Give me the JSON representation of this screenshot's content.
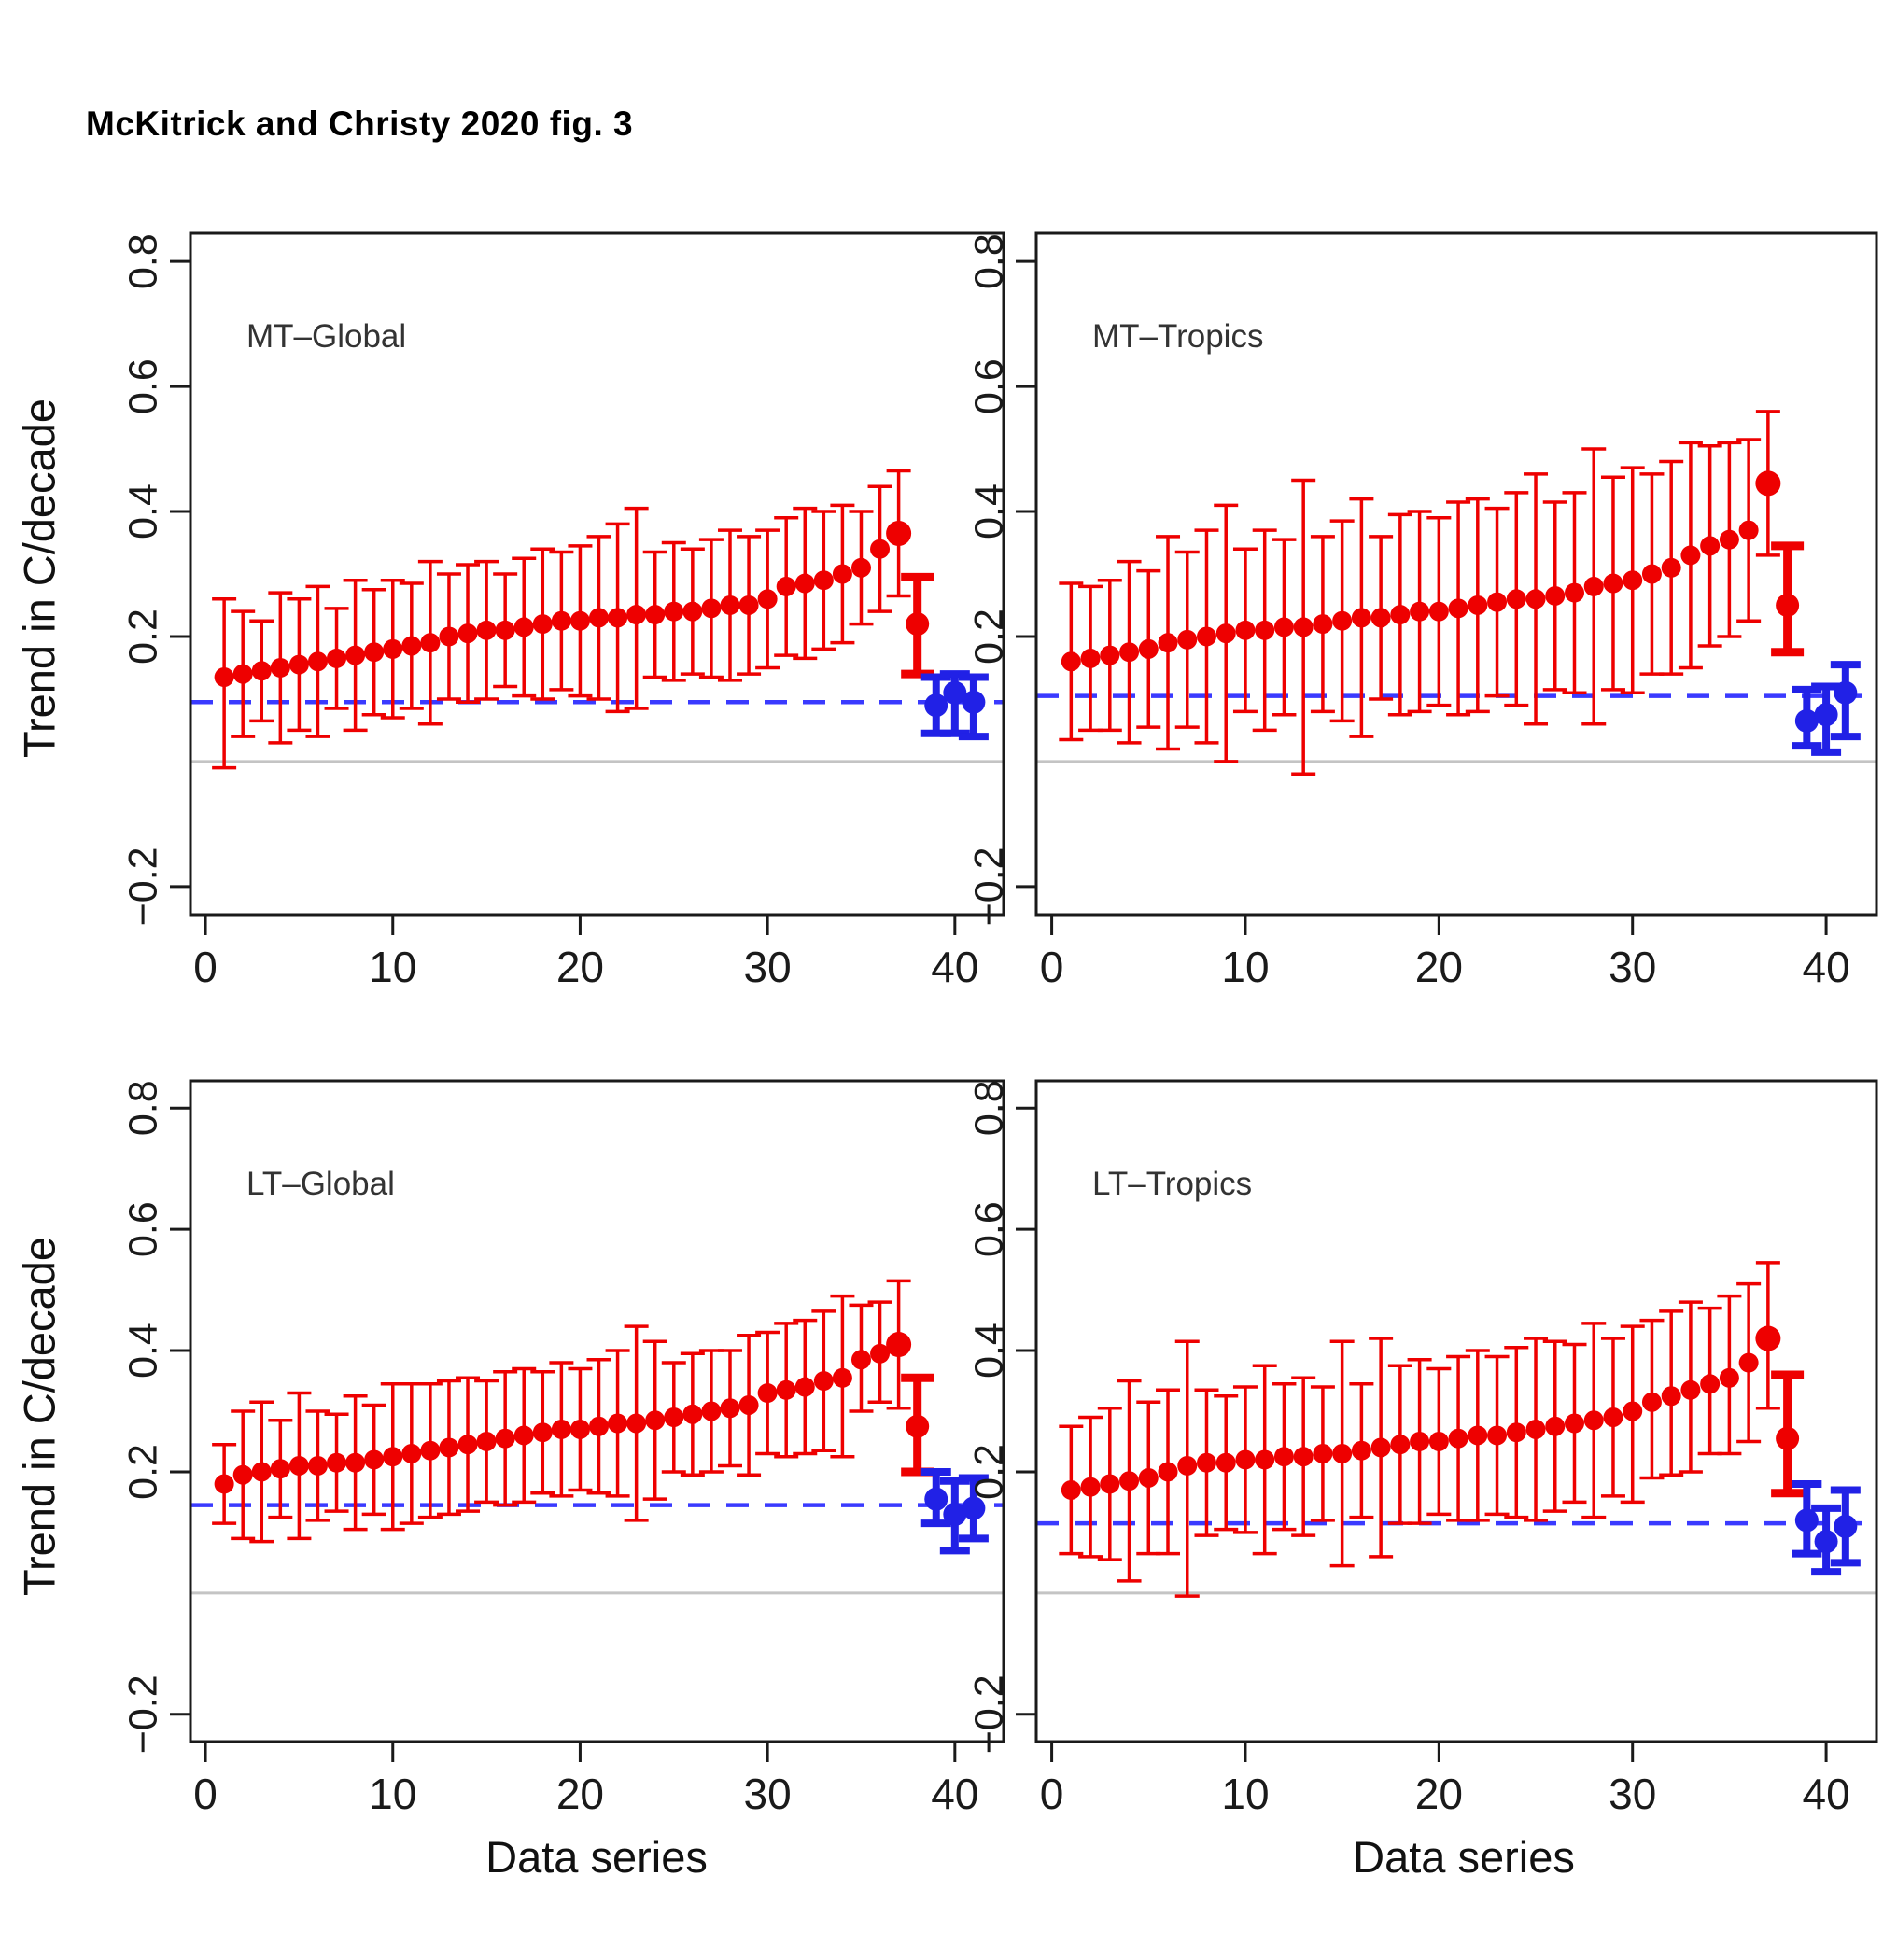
{
  "title": "McKitrick and Christy 2020 fig. 3",
  "axes": {
    "x_title": "Data series",
    "y_title": "Trend in C/decade",
    "x_ticks": [
      0,
      10,
      20,
      30,
      40
    ],
    "y_ticks": [
      0.8,
      0.6,
      0.4,
      0.2,
      -0.2
    ],
    "y_tick_labels": [
      "0.8",
      "0.6",
      "0.4",
      "0.2",
      "−0.2"
    ]
  },
  "colors": {
    "model_red": "#EE0000",
    "obs_blue": "#2121E6",
    "obs_mean_dashed": "#3A3AFF",
    "zero_line_gray": "#C4C4C4",
    "axis": "#1A1A1A",
    "panel_label": "#333333"
  },
  "chart_data": [
    {
      "type": "scatter",
      "id": "mt-global",
      "label": "MT–Global",
      "row": 0,
      "col": 0,
      "ylabel": "Trend in C/decade",
      "xlabel": "Data series",
      "ylim": [
        -0.245,
        0.845
      ],
      "zero_line": 0.0,
      "obs_mean_line": 0.095,
      "models": {
        "x_start": 1,
        "values": [
          0.135,
          0.14,
          0.145,
          0.15,
          0.155,
          0.16,
          0.165,
          0.17,
          0.175,
          0.18,
          0.185,
          0.19,
          0.2,
          0.205,
          0.21,
          0.21,
          0.215,
          0.22,
          0.225,
          0.225,
          0.23,
          0.23,
          0.235,
          0.235,
          0.24,
          0.24,
          0.245,
          0.25,
          0.25,
          0.26,
          0.28,
          0.285,
          0.29,
          0.3,
          0.31,
          0.34,
          0.365
        ],
        "lo": [
          -0.01,
          0.04,
          0.065,
          0.03,
          0.05,
          0.04,
          0.085,
          0.05,
          0.075,
          0.07,
          0.085,
          0.06,
          0.1,
          0.095,
          0.1,
          0.12,
          0.105,
          0.1,
          0.115,
          0.105,
          0.1,
          0.08,
          0.085,
          0.135,
          0.13,
          0.14,
          0.135,
          0.13,
          0.14,
          0.15,
          0.17,
          0.165,
          0.18,
          0.19,
          0.22,
          0.24,
          0.265
        ],
        "hi": [
          0.26,
          0.24,
          0.225,
          0.27,
          0.26,
          0.28,
          0.245,
          0.29,
          0.275,
          0.29,
          0.285,
          0.32,
          0.3,
          0.315,
          0.32,
          0.3,
          0.325,
          0.34,
          0.335,
          0.345,
          0.36,
          0.38,
          0.405,
          0.335,
          0.35,
          0.34,
          0.355,
          0.37,
          0.36,
          0.37,
          0.39,
          0.405,
          0.4,
          0.41,
          0.4,
          0.44,
          0.465
        ]
      },
      "model_mean": {
        "x": 38,
        "value": 0.22,
        "lo": 0.14,
        "hi": 0.295
      },
      "observations": [
        {
          "x": 39,
          "value": 0.09,
          "lo": 0.045,
          "hi": 0.135
        },
        {
          "x": 40,
          "value": 0.11,
          "lo": 0.045,
          "hi": 0.14
        },
        {
          "x": 41,
          "value": 0.095,
          "lo": 0.04,
          "hi": 0.135
        }
      ]
    },
    {
      "type": "scatter",
      "id": "mt-tropics",
      "label": "MT–Tropics",
      "row": 0,
      "col": 1,
      "ylabel": "Trend in C/decade",
      "xlabel": "Data series",
      "ylim": [
        -0.245,
        0.845
      ],
      "zero_line": 0.0,
      "obs_mean_line": 0.105,
      "models": {
        "x_start": 1,
        "values": [
          0.16,
          0.165,
          0.17,
          0.175,
          0.18,
          0.19,
          0.195,
          0.2,
          0.205,
          0.21,
          0.21,
          0.215,
          0.215,
          0.22,
          0.225,
          0.23,
          0.23,
          0.235,
          0.24,
          0.24,
          0.245,
          0.25,
          0.255,
          0.26,
          0.26,
          0.265,
          0.27,
          0.28,
          0.285,
          0.29,
          0.3,
          0.31,
          0.33,
          0.345,
          0.355,
          0.37,
          0.445
        ],
        "lo": [
          0.035,
          0.05,
          0.05,
          0.03,
          0.055,
          0.02,
          0.055,
          0.03,
          0.0,
          0.08,
          0.05,
          0.075,
          -0.02,
          0.08,
          0.065,
          0.04,
          0.1,
          0.075,
          0.08,
          0.09,
          0.075,
          0.08,
          0.105,
          0.09,
          0.06,
          0.115,
          0.11,
          0.06,
          0.115,
          0.11,
          0.14,
          0.14,
          0.15,
          0.185,
          0.2,
          0.225,
          0.33
        ],
        "hi": [
          0.285,
          0.28,
          0.29,
          0.32,
          0.305,
          0.36,
          0.335,
          0.37,
          0.41,
          0.34,
          0.37,
          0.355,
          0.45,
          0.36,
          0.385,
          0.42,
          0.36,
          0.395,
          0.4,
          0.39,
          0.415,
          0.42,
          0.405,
          0.43,
          0.46,
          0.415,
          0.43,
          0.5,
          0.455,
          0.47,
          0.46,
          0.48,
          0.51,
          0.505,
          0.51,
          0.515,
          0.56
        ]
      },
      "model_mean": {
        "x": 38,
        "value": 0.25,
        "lo": 0.175,
        "hi": 0.345
      },
      "observations": [
        {
          "x": 39,
          "value": 0.065,
          "lo": 0.025,
          "hi": 0.115
        },
        {
          "x": 40,
          "value": 0.075,
          "lo": 0.015,
          "hi": 0.12
        },
        {
          "x": 41,
          "value": 0.11,
          "lo": 0.04,
          "hi": 0.155
        }
      ]
    },
    {
      "type": "scatter",
      "id": "lt-global",
      "label": "LT–Global",
      "row": 1,
      "col": 0,
      "ylabel": "Trend in C/decade",
      "xlabel": "Data series",
      "ylim": [
        -0.245,
        0.845
      ],
      "zero_line": 0.0,
      "obs_mean_line": 0.145,
      "models": {
        "x_start": 1,
        "values": [
          0.18,
          0.195,
          0.2,
          0.205,
          0.21,
          0.21,
          0.215,
          0.215,
          0.22,
          0.225,
          0.23,
          0.235,
          0.24,
          0.245,
          0.25,
          0.255,
          0.26,
          0.265,
          0.27,
          0.27,
          0.275,
          0.28,
          0.28,
          0.285,
          0.29,
          0.295,
          0.3,
          0.305,
          0.31,
          0.33,
          0.335,
          0.34,
          0.35,
          0.355,
          0.385,
          0.395,
          0.41
        ],
        "lo": [
          0.115,
          0.09,
          0.085,
          0.125,
          0.09,
          0.12,
          0.135,
          0.105,
          0.13,
          0.105,
          0.115,
          0.125,
          0.13,
          0.135,
          0.15,
          0.145,
          0.15,
          0.165,
          0.16,
          0.17,
          0.165,
          0.16,
          0.12,
          0.155,
          0.2,
          0.195,
          0.2,
          0.21,
          0.195,
          0.23,
          0.225,
          0.23,
          0.235,
          0.225,
          0.3,
          0.315,
          0.305
        ],
        "hi": [
          0.245,
          0.3,
          0.315,
          0.285,
          0.33,
          0.3,
          0.295,
          0.325,
          0.31,
          0.345,
          0.345,
          0.345,
          0.35,
          0.355,
          0.35,
          0.365,
          0.37,
          0.365,
          0.38,
          0.37,
          0.385,
          0.4,
          0.44,
          0.415,
          0.38,
          0.395,
          0.4,
          0.4,
          0.425,
          0.43,
          0.445,
          0.45,
          0.465,
          0.49,
          0.475,
          0.48,
          0.515
        ]
      },
      "model_mean": {
        "x": 38,
        "value": 0.275,
        "lo": 0.2,
        "hi": 0.355
      },
      "observations": [
        {
          "x": 39,
          "value": 0.155,
          "lo": 0.115,
          "hi": 0.2
        },
        {
          "x": 40,
          "value": 0.13,
          "lo": 0.07,
          "hi": 0.185
        },
        {
          "x": 41,
          "value": 0.14,
          "lo": 0.09,
          "hi": 0.19
        }
      ]
    },
    {
      "type": "scatter",
      "id": "lt-tropics",
      "label": "LT–Tropics",
      "row": 1,
      "col": 1,
      "ylabel": "Trend in C/decade",
      "xlabel": "Data series",
      "ylim": [
        -0.245,
        0.845
      ],
      "zero_line": 0.0,
      "obs_mean_line": 0.115,
      "models": {
        "x_start": 1,
        "values": [
          0.17,
          0.175,
          0.18,
          0.185,
          0.19,
          0.2,
          0.21,
          0.215,
          0.215,
          0.22,
          0.22,
          0.225,
          0.225,
          0.23,
          0.23,
          0.235,
          0.24,
          0.245,
          0.25,
          0.25,
          0.255,
          0.26,
          0.26,
          0.265,
          0.27,
          0.275,
          0.28,
          0.285,
          0.29,
          0.3,
          0.315,
          0.325,
          0.335,
          0.345,
          0.355,
          0.38,
          0.42
        ],
        "lo": [
          0.065,
          0.06,
          0.055,
          0.02,
          0.065,
          0.065,
          -0.005,
          0.095,
          0.105,
          0.1,
          0.065,
          0.105,
          0.095,
          0.12,
          0.045,
          0.125,
          0.06,
          0.115,
          0.115,
          0.13,
          0.12,
          0.12,
          0.13,
          0.125,
          0.12,
          0.135,
          0.15,
          0.125,
          0.16,
          0.15,
          0.19,
          0.195,
          0.2,
          0.23,
          0.23,
          0.25,
          0.305
        ],
        "hi": [
          0.275,
          0.29,
          0.305,
          0.35,
          0.315,
          0.335,
          0.415,
          0.335,
          0.325,
          0.34,
          0.375,
          0.345,
          0.355,
          0.34,
          0.415,
          0.345,
          0.42,
          0.375,
          0.385,
          0.37,
          0.39,
          0.4,
          0.39,
          0.405,
          0.42,
          0.415,
          0.41,
          0.445,
          0.42,
          0.44,
          0.45,
          0.465,
          0.48,
          0.47,
          0.49,
          0.51,
          0.545
        ]
      },
      "model_mean": {
        "x": 38,
        "value": 0.255,
        "lo": 0.165,
        "hi": 0.36
      },
      "observations": [
        {
          "x": 39,
          "value": 0.12,
          "lo": 0.065,
          "hi": 0.18
        },
        {
          "x": 40,
          "value": 0.085,
          "lo": 0.035,
          "hi": 0.14
        },
        {
          "x": 41,
          "value": 0.11,
          "lo": 0.05,
          "hi": 0.17
        }
      ]
    }
  ]
}
